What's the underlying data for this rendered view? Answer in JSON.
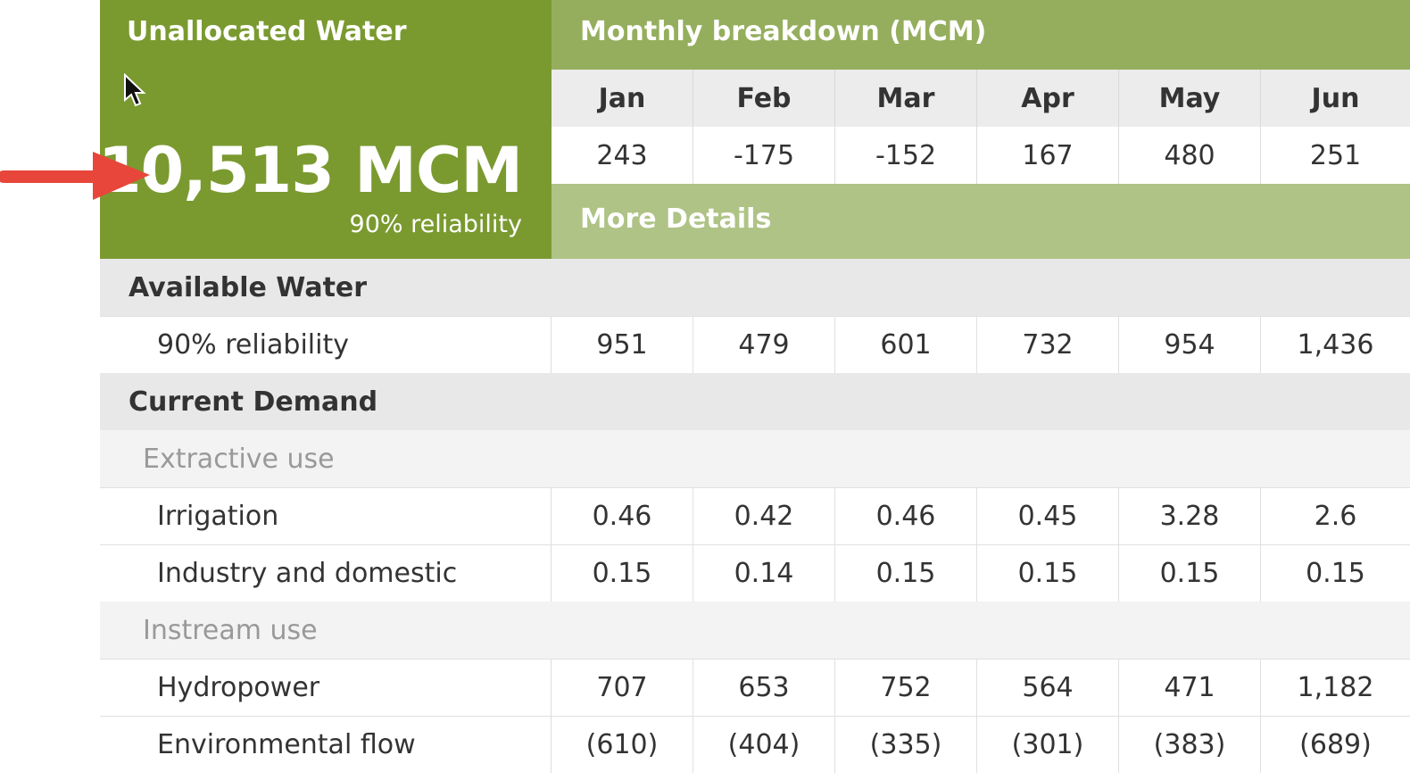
{
  "summary": {
    "title": "Unallocated Water",
    "value": "10,513 MCM",
    "reliability": "90% reliability"
  },
  "breakdown": {
    "title": "Monthly breakdown (MCM)",
    "months": [
      "Jan",
      "Feb",
      "Mar",
      "Apr",
      "May",
      "Jun"
    ],
    "values": [
      "243",
      "-175",
      "-152",
      "167",
      "480",
      "251"
    ],
    "more_details": "More Details"
  },
  "table": {
    "available": {
      "label": "Available Water",
      "rows": [
        {
          "label": "90% reliability",
          "values": [
            "951",
            "479",
            "601",
            "732",
            "954",
            "1,436"
          ]
        }
      ]
    },
    "demand": {
      "label": "Current Demand",
      "extractive": {
        "label": "Extractive use",
        "rows": [
          {
            "label": "Irrigation",
            "values": [
              "0.46",
              "0.42",
              "0.46",
              "0.45",
              "3.28",
              "2.6"
            ]
          },
          {
            "label": "Industry and domestic",
            "values": [
              "0.15",
              "0.14",
              "0.15",
              "0.15",
              "0.15",
              "0.15"
            ]
          }
        ]
      },
      "instream": {
        "label": "Instream use",
        "rows": [
          {
            "label": "Hydropower",
            "values": [
              "707",
              "653",
              "752",
              "564",
              "471",
              "1,182"
            ]
          },
          {
            "label": "Environmental flow",
            "values": [
              "(610)",
              "(404)",
              "(335)",
              "(301)",
              "(383)",
              "(689)"
            ]
          }
        ]
      }
    }
  },
  "colors": {
    "summary_bg": "#7a9a30",
    "header_bg": "#95ae5d",
    "more_bg": "#aec385",
    "arrow": "#e8463a"
  },
  "icons": {
    "arrow": "red-arrow-icon",
    "cursor": "mouse-pointer-icon"
  }
}
